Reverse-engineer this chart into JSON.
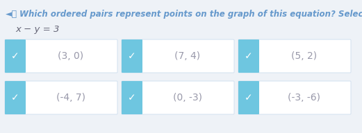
{
  "title": "Which ordered pairs represent points on the graph of this equation? Select all th",
  "equation": "x − y = 3",
  "bg_color": "#eef2f7",
  "box_bg": "#ffffff",
  "check_color": "#6ec6e0",
  "check_mark_color": "#ffffff",
  "text_color": "#9999aa",
  "title_color": "#6699cc",
  "eq_color": "#666677",
  "pairs": [
    [
      "(3, 0)",
      "(7, 4)",
      "(5, 2)"
    ],
    [
      "(-4, 7)",
      "(0, -3)",
      "(-3, -6)"
    ]
  ],
  "checked": [
    [
      true,
      true,
      true
    ],
    [
      true,
      true,
      true
    ]
  ]
}
